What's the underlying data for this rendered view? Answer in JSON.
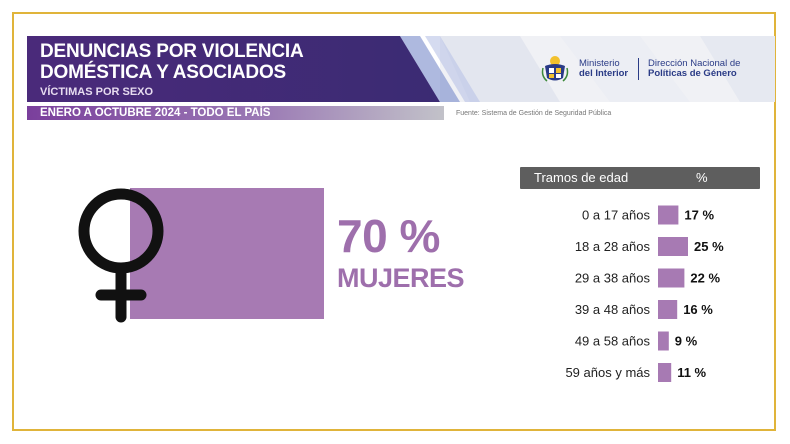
{
  "header": {
    "title_line1": "DENUNCIAS POR VIOLENCIA",
    "title_line2": "DOMÉSTICA Y ASOCIADOS",
    "subtitle": "VÍCTIMAS POR SEXO",
    "period": "ENERO A OCTUBRE 2024 - TODO EL PAÍS",
    "source": "Fuente: Sistema de Gestión de Seguridad Pública"
  },
  "logos": {
    "ministry_line1": "Ministerio",
    "ministry_line2": "del Interior",
    "direction_line1": "Dirección Nacional de",
    "direction_line2": "Políticas de Género"
  },
  "colors": {
    "banner": "#4b2a7c",
    "accent": "#a77ab3",
    "text_accent": "#9e6fac",
    "table_header": "#5e5e5e",
    "frame": "#e0b43a",
    "logo_blue": "#2a3b86"
  },
  "chart_data": {
    "type": "bar",
    "summary": {
      "value_label": "70 %",
      "label": "MUJERES",
      "value": 70
    },
    "table_header": {
      "category": "Tramos de edad",
      "value": "%"
    },
    "categories": [
      "0 a 17 años",
      "18 a 28 años",
      "29 a 38 años",
      "39 a 48 años",
      "49 a 58 años",
      "59 años y más"
    ],
    "values": [
      17,
      25,
      22,
      16,
      9,
      11
    ],
    "value_labels": [
      "17 %",
      "25 %",
      "22 %",
      "16 %",
      "9 %",
      "11 %"
    ]
  }
}
